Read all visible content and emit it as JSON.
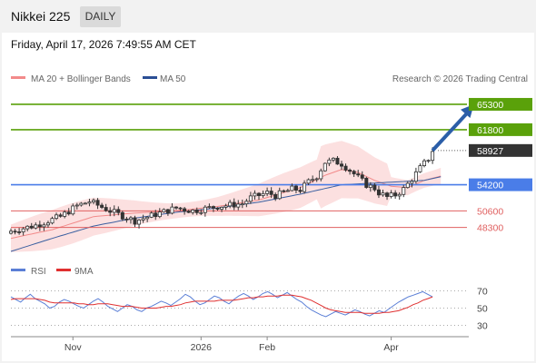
{
  "header": {
    "title": "Nikkei 225",
    "period": "DAILY",
    "timestamp": "Friday, April 17, 2026 7:49:55 AM CET"
  },
  "legend": {
    "ma20": "MA 20 + Bollinger Bands",
    "ma50": "MA 50",
    "credit": "Research © 2026 Trading Central",
    "rsi": "RSI",
    "ma9": "9MA"
  },
  "colors": {
    "green_level": "#5aa10a",
    "blue_level": "#4a7de8",
    "red_level": "#e06060",
    "price": "#333333",
    "arrow": "#2b5ea8",
    "ma50": "#3a5fa0",
    "bollinger_fill": "#fbd5d5",
    "ma20": "#f28a8a",
    "rsi": "#5b7fd6",
    "ma9": "#e03030"
  },
  "chart_data": [
    {
      "type": "candlestick",
      "title": "Nikkei 225",
      "x_ticks": [
        "Nov",
        "2026",
        "Feb",
        "Apr"
      ],
      "levels": [
        {
          "label": "65300",
          "value": 65300,
          "kind": "resistance"
        },
        {
          "label": "61800",
          "value": 61800,
          "kind": "resistance"
        },
        {
          "label": "58927",
          "value": 58927,
          "kind": "last price"
        },
        {
          "label": "54200",
          "value": 54200,
          "kind": "pivot"
        },
        {
          "label": "50600",
          "value": 50600,
          "kind": "support"
        },
        {
          "label": "48300",
          "value": 48300,
          "kind": "support"
        }
      ],
      "ylim": [
        43500,
        67800
      ],
      "series": [
        {
          "name": "MA 20 + Bollinger Bands",
          "kind": "ma20_bollinger"
        },
        {
          "name": "MA 50",
          "kind": "ma50"
        }
      ],
      "close_path": [
        [
          0,
          47800
        ],
        [
          6,
          48600
        ],
        [
          12,
          49800
        ],
        [
          16,
          51300
        ],
        [
          19,
          51900
        ],
        [
          24,
          50600
        ],
        [
          30,
          49200
        ],
        [
          36,
          50300
        ],
        [
          40,
          51000
        ],
        [
          44,
          50600
        ],
        [
          50,
          51200
        ],
        [
          56,
          51600
        ],
        [
          58,
          52400
        ],
        [
          62,
          53100
        ],
        [
          64,
          52700
        ],
        [
          68,
          53600
        ],
        [
          70,
          53500
        ],
        [
          72,
          54600
        ],
        [
          74,
          55400
        ],
        [
          76,
          57300
        ],
        [
          78,
          57500
        ],
        [
          80,
          57100
        ],
        [
          82,
          56200
        ],
        [
          84,
          55200
        ],
        [
          86,
          54200
        ],
        [
          88,
          53700
        ],
        [
          89,
          53100
        ],
        [
          91,
          52500
        ],
        [
          93,
          52800
        ],
        [
          95,
          53600
        ],
        [
          97,
          55000
        ],
        [
          99,
          56500
        ],
        [
          101,
          57800
        ],
        [
          102,
          58927
        ]
      ],
      "ma20_path": [
        [
          0,
          46800
        ],
        [
          10,
          48000
        ],
        [
          20,
          49800
        ],
        [
          30,
          50300
        ],
        [
          40,
          50600
        ],
        [
          50,
          51200
        ],
        [
          60,
          52100
        ],
        [
          70,
          53800
        ],
        [
          76,
          55500
        ],
        [
          80,
          56300
        ],
        [
          84,
          55900
        ],
        [
          88,
          54800
        ],
        [
          92,
          54000
        ],
        [
          96,
          53800
        ],
        [
          100,
          54800
        ],
        [
          104,
          55400
        ]
      ],
      "ma50_path": [
        [
          0,
          45000
        ],
        [
          10,
          46800
        ],
        [
          20,
          48500
        ],
        [
          30,
          49600
        ],
        [
          40,
          50400
        ],
        [
          50,
          51000
        ],
        [
          60,
          51800
        ],
        [
          70,
          52900
        ],
        [
          80,
          54200
        ],
        [
          90,
          54500
        ],
        [
          100,
          54800
        ],
        [
          104,
          55300
        ]
      ],
      "projection": {
        "from": [
          102,
          58927
        ],
        "to": [
          112,
          65300
        ]
      }
    },
    {
      "type": "line",
      "title": "RSI",
      "ylim": [
        20,
        80
      ],
      "yticks": [
        70,
        50,
        30
      ],
      "series": [
        {
          "name": "RSI",
          "values": [
            63,
            60,
            57,
            62,
            66,
            61,
            58,
            55,
            50,
            52,
            57,
            60,
            58,
            55,
            52,
            50,
            54,
            58,
            61,
            57,
            52,
            49,
            46,
            50,
            54,
            52,
            48,
            46,
            50,
            52,
            55,
            58,
            56,
            53,
            57,
            61,
            66,
            63,
            58,
            54,
            56,
            60,
            64,
            62,
            58,
            55,
            60,
            64,
            67,
            64,
            60,
            63,
            67,
            69,
            66,
            62,
            65,
            68,
            64,
            60,
            57,
            52,
            48,
            45,
            42,
            40,
            43,
            46,
            44,
            42,
            45,
            48,
            46,
            43,
            41,
            44,
            47,
            45,
            49,
            53,
            57,
            60,
            63,
            65,
            67,
            69,
            66,
            63
          ]
        },
        {
          "name": "9MA",
          "values": [
            60,
            61,
            61,
            61,
            61,
            61,
            60,
            59,
            57,
            56,
            56,
            56,
            56,
            56,
            55,
            55,
            54,
            54,
            55,
            55,
            55,
            54,
            53,
            52,
            52,
            52,
            51,
            50,
            50,
            50,
            50,
            51,
            52,
            52,
            53,
            54,
            56,
            57,
            58,
            58,
            58,
            58,
            58,
            59,
            59,
            59,
            59,
            60,
            61,
            62,
            62,
            63,
            63,
            64,
            64,
            64,
            65,
            65,
            65,
            64,
            63,
            61,
            59,
            56,
            53,
            50,
            48,
            47,
            46,
            45,
            45,
            45,
            45,
            44,
            44,
            44,
            44,
            45,
            45,
            46,
            47,
            49,
            51,
            54,
            56,
            59,
            61,
            63
          ]
        }
      ]
    }
  ]
}
